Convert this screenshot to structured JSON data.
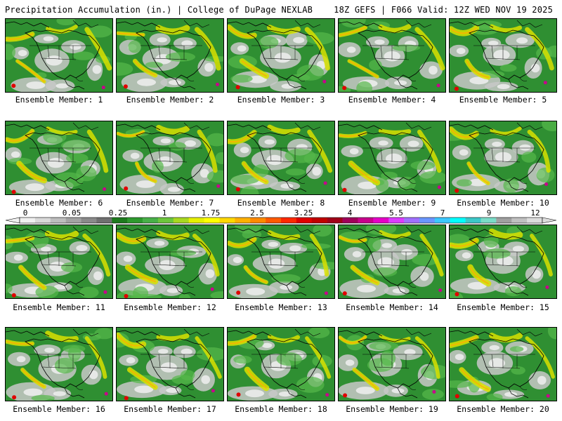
{
  "header": {
    "title": "Precipitation Accumulation (in.) | College of DuPage NEXLAB",
    "run_info": "18Z GEFS | F066 Valid: 12Z WED NOV 19 2025"
  },
  "panels": [
    {
      "label": "Ensemble Member: 1"
    },
    {
      "label": "Ensemble Member: 2"
    },
    {
      "label": "Ensemble Member: 3"
    },
    {
      "label": "Ensemble Member: 4"
    },
    {
      "label": "Ensemble Member: 5"
    },
    {
      "label": "Ensemble Member: 6"
    },
    {
      "label": "Ensemble Member: 7"
    },
    {
      "label": "Ensemble Member: 8"
    },
    {
      "label": "Ensemble Member: 9"
    },
    {
      "label": "Ensemble Member: 10"
    },
    {
      "label": "Ensemble Member: 11"
    },
    {
      "label": "Ensemble Member: 12"
    },
    {
      "label": "Ensemble Member: 13"
    },
    {
      "label": "Ensemble Member: 14"
    },
    {
      "label": "Ensemble Member: 15"
    },
    {
      "label": "Ensemble Member: 16"
    },
    {
      "label": "Ensemble Member: 17"
    },
    {
      "label": "Ensemble Member: 18"
    },
    {
      "label": "Ensemble Member: 19"
    },
    {
      "label": "Ensemble Member: 20"
    }
  ],
  "colorbar": {
    "tick_labels": [
      "0",
      "0.05",
      "0.25",
      "1",
      "1.75",
      "2.5",
      "3.25",
      "4",
      "5.5",
      "7",
      "9",
      "12"
    ],
    "colors": [
      "#f0f0f0",
      "#d9d9d9",
      "#bdbdbd",
      "#a3a3a3",
      "#8a8a8a",
      "#707070",
      "#1e7a1e",
      "#2e9a2e",
      "#48b048",
      "#6cc63c",
      "#a8d820",
      "#e6f000",
      "#ffff00",
      "#ffd800",
      "#ffb000",
      "#ff8a00",
      "#ff5a00",
      "#ff2800",
      "#e00000",
      "#c00000",
      "#a00018",
      "#a0005a",
      "#c8008c",
      "#e600c8",
      "#dc3cff",
      "#a070ff",
      "#6a96ff",
      "#3cc8ff",
      "#00ffff",
      "#3cc8c8",
      "#7adcc8",
      "#a0a0a0",
      "#c0c0c0",
      "#dcdcdc"
    ]
  }
}
